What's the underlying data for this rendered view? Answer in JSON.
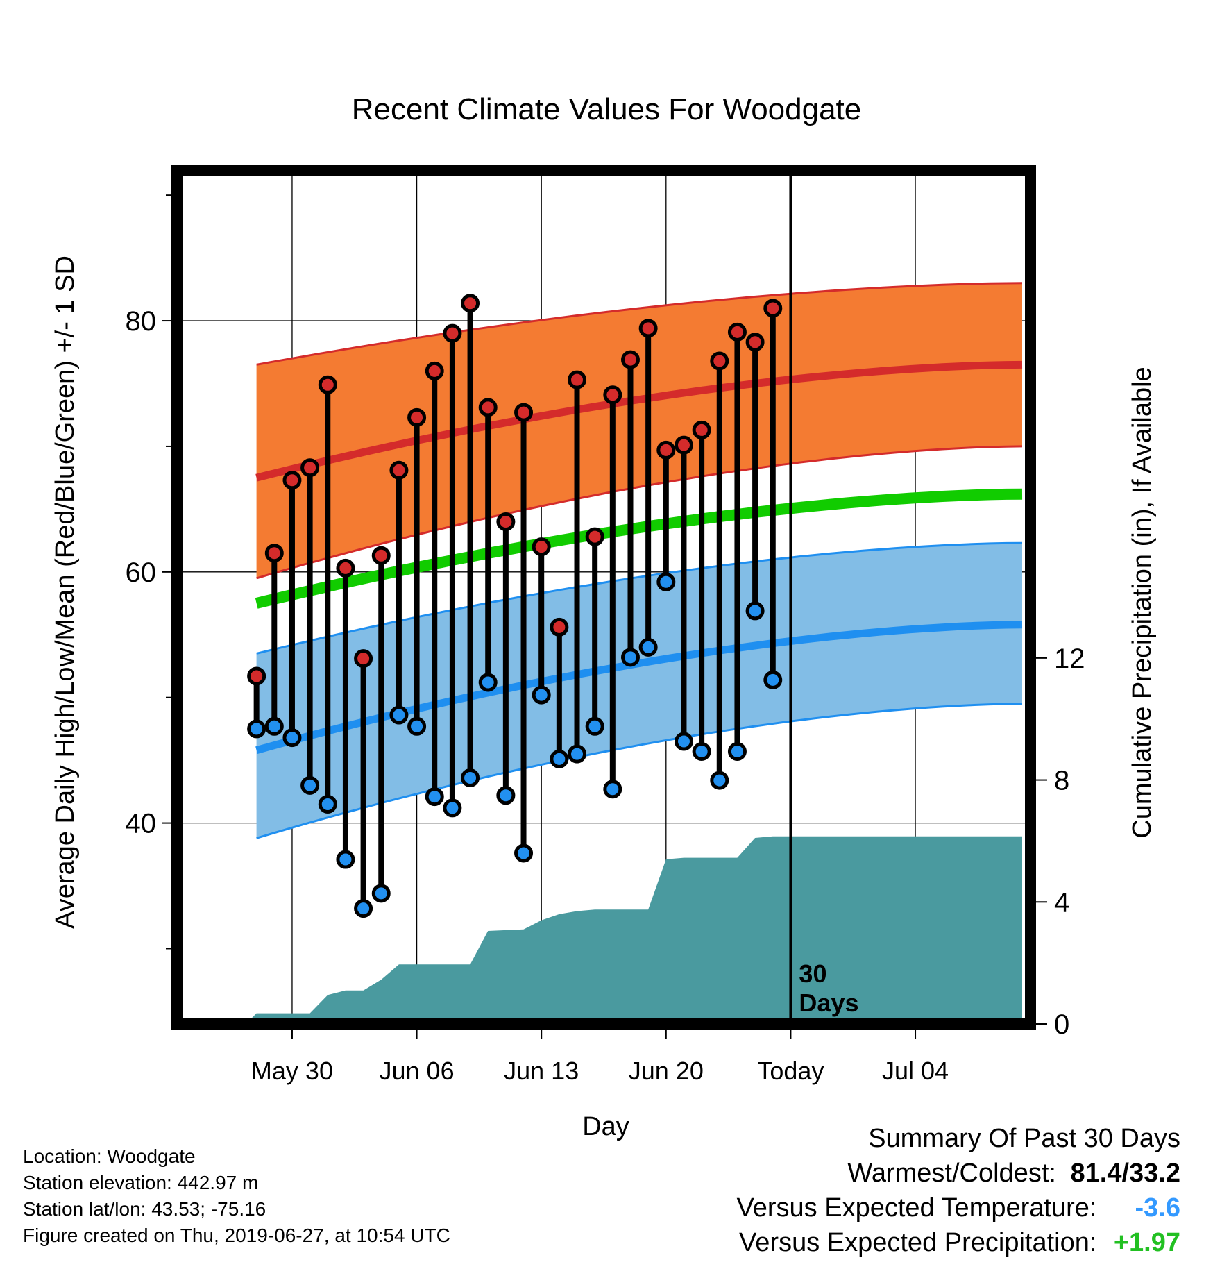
{
  "chart_data": {
    "type": "line",
    "title": "Recent Climate Values For Woodgate",
    "xlabel": "Day",
    "ylabel_left": "Average Daily High/Low/Mean (Red/Blue/Green) +/- 1 SD",
    "ylabel_right": "Cumulative Precipitation (in), If Available",
    "x_range_days": [
      -6,
      41
    ],
    "x_ticks": [
      {
        "day": 0,
        "label": "May 30"
      },
      {
        "day": 7,
        "label": "Jun 06"
      },
      {
        "day": 14,
        "label": "Jun 13"
      },
      {
        "day": 21,
        "label": "Jun 20"
      },
      {
        "day": 28,
        "label": "Today"
      },
      {
        "day": 35,
        "label": "Jul 04"
      }
    ],
    "ylim_left": [
      24,
      92
    ],
    "y_ticks_left": [
      40,
      60,
      80
    ],
    "ylim_right": [
      0,
      28
    ],
    "y_ticks_right": [
      0,
      4,
      8,
      12
    ],
    "today_day": 28,
    "today_label": "30\nDays",
    "normal_high": {
      "days": [
        -2,
        41
      ],
      "mean": [
        67.5,
        76.5
      ],
      "upper": [
        76.5,
        83
      ],
      "lower": [
        59.5,
        70
      ]
    },
    "normal_mean": {
      "days": [
        -2,
        41
      ],
      "values": [
        57.5,
        66.2
      ]
    },
    "normal_low": {
      "days": [
        -2,
        41
      ],
      "mean": [
        45.8,
        55.8
      ],
      "upper": [
        53.5,
        62.3
      ],
      "lower": [
        38.8,
        49.5
      ]
    },
    "daily_obs": [
      {
        "day": -2,
        "high": 51.7,
        "low": 47.5
      },
      {
        "day": -1,
        "high": 61.5,
        "low": 47.7
      },
      {
        "day": 0,
        "high": 67.3,
        "low": 46.8
      },
      {
        "day": 1,
        "high": 68.3,
        "low": 43
      },
      {
        "day": 2,
        "high": 74.9,
        "low": 41.5
      },
      {
        "day": 3,
        "high": 60.3,
        "low": 37.1
      },
      {
        "day": 4,
        "high": 53.1,
        "low": 33.2
      },
      {
        "day": 5,
        "high": 61.3,
        "low": 34.4
      },
      {
        "day": 6,
        "high": 68.1,
        "low": 48.6
      },
      {
        "day": 7,
        "high": 72.3,
        "low": 47.7
      },
      {
        "day": 8,
        "high": 76,
        "low": 42.1
      },
      {
        "day": 9,
        "high": 79,
        "low": 41.2
      },
      {
        "day": 10,
        "high": 81.4,
        "low": 43.6
      },
      {
        "day": 11,
        "high": 73.1,
        "low": 51.2
      },
      {
        "day": 12,
        "high": 64,
        "low": 42.2
      },
      {
        "day": 13,
        "high": 72.7,
        "low": 37.6
      },
      {
        "day": 14,
        "high": 62,
        "low": 50.2
      },
      {
        "day": 15,
        "high": 55.6,
        "low": 45.1
      },
      {
        "day": 16,
        "high": 75.3,
        "low": 45.5
      },
      {
        "day": 17,
        "high": 62.8,
        "low": 47.7
      },
      {
        "day": 18,
        "high": 74.1,
        "low": 42.7
      },
      {
        "day": 19,
        "high": 76.9,
        "low": 53.2
      },
      {
        "day": 20,
        "high": 79.4,
        "low": 54
      },
      {
        "day": 21,
        "high": 69.7,
        "low": 59.2
      },
      {
        "day": 22,
        "high": 70.1,
        "low": 46.5
      },
      {
        "day": 23,
        "high": 71.3,
        "low": 45.7
      },
      {
        "day": 24,
        "high": 76.8,
        "low": 43.4
      },
      {
        "day": 25,
        "high": 79.1,
        "low": 45.7
      },
      {
        "day": 26,
        "high": 78.3,
        "low": 56.9
      },
      {
        "day": 27,
        "high": 81,
        "low": 51.4
      }
    ],
    "cumulative_precip": {
      "days": [
        -2.6,
        -2,
        1,
        2,
        3,
        4,
        5,
        6,
        7,
        10,
        11,
        13,
        14,
        15,
        16,
        17,
        18,
        19,
        20,
        21,
        22,
        23,
        24,
        25,
        26,
        27,
        28,
        41
      ],
      "values": [
        0,
        0.35,
        0.35,
        0.95,
        1.1,
        1.1,
        1.45,
        1.95,
        1.95,
        1.95,
        3.05,
        3.1,
        3.4,
        3.6,
        3.7,
        3.75,
        3.75,
        3.75,
        3.75,
        5.4,
        5.45,
        5.45,
        5.45,
        5.45,
        6.1,
        6.15,
        6.15,
        6.15
      ]
    }
  },
  "colors": {
    "high_band": "#f47b32",
    "high_line": "#d42b2b",
    "mean_line": "#11cc00",
    "low_band": "#82bde6",
    "low_line": "#1f8ff0",
    "precip": "#4a9a9f",
    "high_marker": "#d42b2b",
    "low_marker": "#2290f0",
    "precip_anomaly": "#22c022",
    "temp_anomaly": "#3399ff"
  },
  "info": {
    "location": "Location: Woodgate",
    "elevation": "Station elevation: 442.97 m",
    "latlon": "Station lat/lon: 43.53; -75.16",
    "created": "Figure created on Thu, 2019-06-27, at 10:54 UTC"
  },
  "summary": {
    "heading": "Summary Of Past 30 Days",
    "warm_cold_label": "Warmest/Coldest:",
    "warm_cold_value": "81.4/33.2",
    "temp_label": "Versus Expected Temperature:",
    "temp_value": "-3.6",
    "precip_label": "Versus Expected Precipitation:",
    "precip_value": "+1.97"
  }
}
